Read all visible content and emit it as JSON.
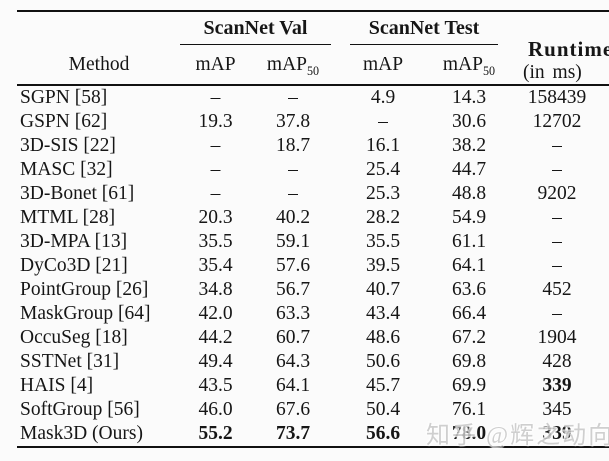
{
  "page": {
    "background_color": "#fbfbfb",
    "text_color": "#161616",
    "rule_color": "#111111"
  },
  "watermark": {
    "text": "知乎 @辉之动向",
    "color": "#c8c8c8"
  },
  "table": {
    "group_headers": {
      "val": "ScanNet Val",
      "test": "ScanNet Test"
    },
    "runtime_header": {
      "line1": "Runtime",
      "line2": "(in ms)"
    },
    "col_headers": {
      "method": "Method",
      "map": "mAP",
      "map50_base": "mAP",
      "map50_sub": "50"
    },
    "fields": [
      "method",
      "val_map",
      "val_map50",
      "test_map",
      "test_map50",
      "runtime"
    ],
    "rows": [
      {
        "values": [
          "SGPN [58]",
          "–",
          "–",
          "4.9",
          "14.3",
          "158439"
        ],
        "bold": []
      },
      {
        "values": [
          "GSPN [62]",
          "19.3",
          "37.8",
          "–",
          "30.6",
          "12702"
        ],
        "bold": []
      },
      {
        "values": [
          "3D-SIS [22]",
          "–",
          "18.7",
          "16.1",
          "38.2",
          "–"
        ],
        "bold": []
      },
      {
        "values": [
          "MASC [32]",
          "–",
          "–",
          "25.4",
          "44.7",
          "–"
        ],
        "bold": []
      },
      {
        "values": [
          "3D-Bonet [61]",
          "–",
          "–",
          "25.3",
          "48.8",
          "9202"
        ],
        "bold": []
      },
      {
        "values": [
          "MTML [28]",
          "20.3",
          "40.2",
          "28.2",
          "54.9",
          "–"
        ],
        "bold": []
      },
      {
        "values": [
          "3D-MPA [13]",
          "35.5",
          "59.1",
          "35.5",
          "61.1",
          "–"
        ],
        "bold": []
      },
      {
        "values": [
          "DyCo3D [21]",
          "35.4",
          "57.6",
          "39.5",
          "64.1",
          "–"
        ],
        "bold": []
      },
      {
        "values": [
          "PointGroup [26]",
          "34.8",
          "56.7",
          "40.7",
          "63.6",
          "452"
        ],
        "bold": []
      },
      {
        "values": [
          "MaskGroup [64]",
          "42.0",
          "63.3",
          "43.4",
          "66.4",
          "–"
        ],
        "bold": []
      },
      {
        "values": [
          "OccuSeg [18]",
          "44.2",
          "60.7",
          "48.6",
          "67.2",
          "1904"
        ],
        "bold": []
      },
      {
        "values": [
          "SSTNet [31]",
          "49.4",
          "64.3",
          "50.6",
          "69.8",
          "428"
        ],
        "bold": []
      },
      {
        "values": [
          "HAIS [4]",
          "43.5",
          "64.1",
          "45.7",
          "69.9",
          "339"
        ],
        "bold": [
          "runtime"
        ]
      },
      {
        "values": [
          "SoftGroup [56]",
          "46.0",
          "67.6",
          "50.4",
          "76.1",
          "345"
        ],
        "bold": []
      },
      {
        "values": [
          "Mask3D (Ours)",
          "55.2",
          "73.7",
          "56.6",
          "78.0",
          "339"
        ],
        "bold": [
          "val_map",
          "val_map50",
          "test_map",
          "test_map50",
          "runtime"
        ]
      }
    ]
  }
}
